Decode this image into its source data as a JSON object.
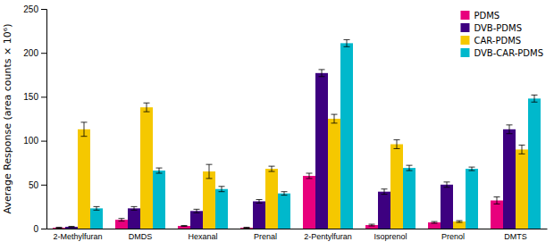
{
  "chart_data": {
    "type": "bar",
    "ylabel": "Average Response (area counts × 10⁶)",
    "categories": [
      "2-Methylfuran",
      "DMDS",
      "Hexanal",
      "Prenal",
      "2-Pentylfuran",
      "Isoprenol",
      "Prenol",
      "DMTS"
    ],
    "series": [
      {
        "name": "PDMS",
        "color": "#e8007d",
        "values": [
          1,
          10,
          3,
          1,
          60,
          4,
          7,
          32
        ],
        "errors": [
          0.5,
          1.5,
          0.5,
          0.5,
          3,
          1,
          1,
          4
        ]
      },
      {
        "name": "DVB-PDMS",
        "color": "#3d0080",
        "values": [
          2,
          23,
          20,
          31,
          177,
          42,
          50,
          113
        ],
        "errors": [
          0.5,
          2,
          2,
          2,
          4,
          3,
          3,
          5
        ]
      },
      {
        "name": "CAR-PDMS",
        "color": "#f5c800",
        "values": [
          113,
          138,
          65,
          68,
          125,
          96,
          8,
          90
        ],
        "errors": [
          8,
          5,
          8,
          3,
          5,
          5,
          1,
          5
        ]
      },
      {
        "name": "DVB-CAR-PDMS",
        "color": "#00b8cc",
        "values": [
          23,
          66,
          45,
          40,
          211,
          69,
          68,
          148
        ],
        "errors": [
          2,
          3,
          3,
          2,
          4,
          3,
          2,
          4
        ]
      }
    ],
    "ylim": [
      0,
      250
    ],
    "yticks": [
      0,
      50,
      100,
      150,
      200,
      250
    ],
    "legend": "upper right",
    "grid": false
  }
}
